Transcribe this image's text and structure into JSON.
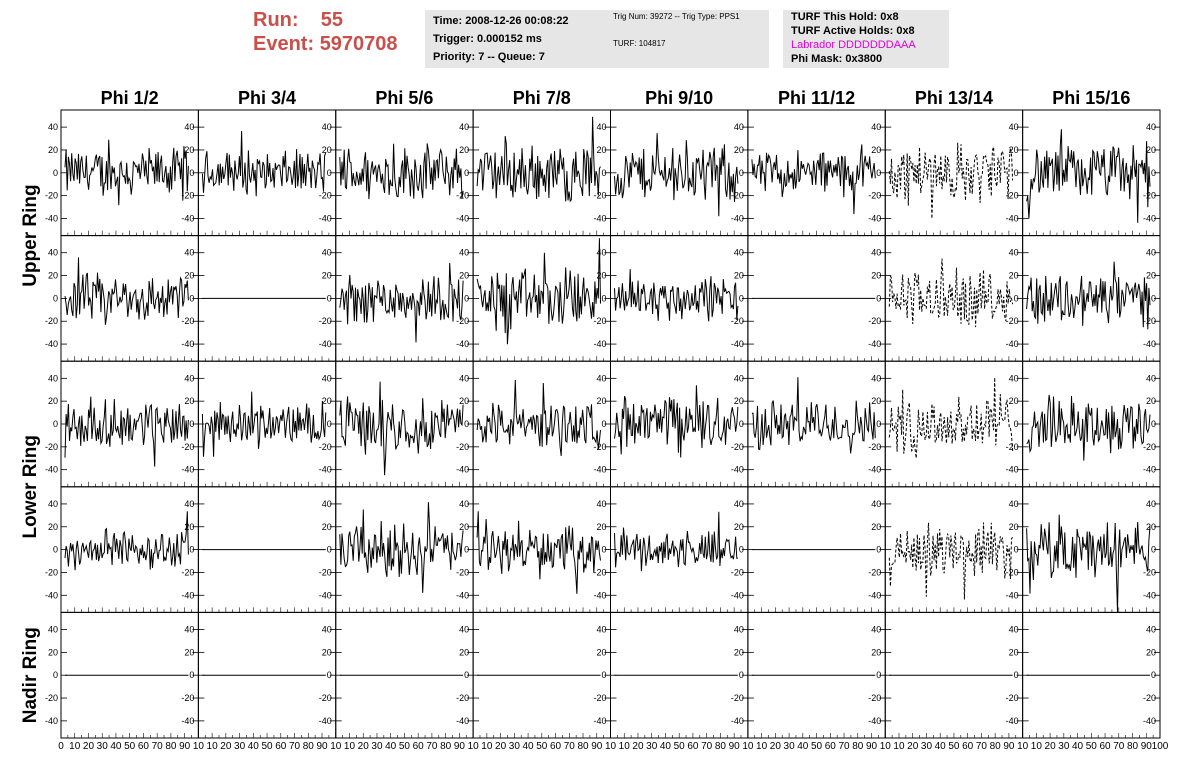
{
  "header": {
    "run_label": "Run:",
    "run_value": "55",
    "event_label": "Event:",
    "event_value": "5970708"
  },
  "info_box_1": {
    "time": "Time: 2008-12-26 00:08:22",
    "trigger": "Trigger: 0.000152 ms",
    "priority": "Priority: 7 -- Queue: 7"
  },
  "info_box_2": {
    "trig": "Trig Num: 39272 -- Trig Type: PPS1",
    "turf": "TURF: 104817"
  },
  "info_box_3": {
    "hold": "TURF This Hold: 0x8",
    "active": "TURF Active Holds: 0x8",
    "labrador": "Labrador DDDDDDDAAA",
    "mask": "Phi Mask: 0x3800"
  },
  "chart_data": {
    "type": "line",
    "columns": [
      "Phi 1/2",
      "Phi 3/4",
      "Phi 5/6",
      "Phi 7/8",
      "Phi 9/10",
      "Phi 11/12",
      "Phi 13/14",
      "Phi 15/16"
    ],
    "rows": [
      "Upper Ring",
      "Upper Ring",
      "Lower Ring",
      "Lower Ring",
      "Nadir Ring"
    ],
    "row_titles": [
      "Upper Ring",
      "Lower Ring",
      "Nadir Ring"
    ],
    "xlim": [
      0,
      100
    ],
    "ylim": [
      -55,
      55
    ],
    "x_ticks": [
      0,
      10,
      20,
      30,
      40,
      50,
      60,
      70,
      80,
      90,
      100
    ],
    "x_tick_labels": [
      "0",
      "10",
      "20",
      "30",
      "40",
      "50",
      "60",
      "70",
      "80",
      "90",
      "10",
      "10",
      "20",
      "30",
      "40",
      "50",
      "60",
      "70",
      "80",
      "90",
      "10",
      "10",
      "20",
      "30",
      "40",
      "50",
      "60",
      "70",
      "80",
      "90",
      "10",
      "10",
      "20",
      "30",
      "40",
      "50",
      "60",
      "70",
      "80",
      "90",
      "10",
      "10",
      "20",
      "30",
      "40",
      "50",
      "60",
      "70",
      "80",
      "90",
      "10",
      "10",
      "20",
      "30",
      "40",
      "50",
      "60",
      "70",
      "80",
      "90",
      "10",
      "10",
      "20",
      "30",
      "40",
      "50",
      "60",
      "70",
      "80",
      "90",
      "10",
      "10",
      "20",
      "30",
      "40",
      "50",
      "60",
      "70",
      "80",
      "90",
      "100"
    ],
    "y_ticks": [
      40,
      20,
      0,
      -20,
      -40
    ],
    "y_tick_labels": [
      "40",
      "20",
      "0",
      "-20",
      "-40"
    ],
    "panels": [
      [
        {
          "amp": 18,
          "style": "solid"
        },
        {
          "amp": 16,
          "style": "solid"
        },
        {
          "amp": 20,
          "style": "solid"
        },
        {
          "amp": 22,
          "style": "solid"
        },
        {
          "amp": 20,
          "style": "solid"
        },
        {
          "amp": 17,
          "style": "solid"
        },
        {
          "amp": 22,
          "style": "dashed"
        },
        {
          "amp": 20,
          "style": "solid"
        }
      ],
      [
        {
          "amp": 18,
          "style": "solid"
        },
        {
          "amp": 0,
          "style": "flat"
        },
        {
          "amp": 18,
          "style": "solid"
        },
        {
          "amp": 22,
          "style": "solid"
        },
        {
          "amp": 17,
          "style": "solid"
        },
        {
          "amp": 0,
          "style": "flat"
        },
        {
          "amp": 20,
          "style": "dashed"
        },
        {
          "amp": 20,
          "style": "solid"
        }
      ],
      [
        {
          "amp": 17,
          "style": "solid"
        },
        {
          "amp": 15,
          "style": "solid"
        },
        {
          "amp": 20,
          "style": "solid"
        },
        {
          "amp": 17,
          "style": "solid"
        },
        {
          "amp": 20,
          "style": "solid"
        },
        {
          "amp": 18,
          "style": "solid"
        },
        {
          "amp": 24,
          "style": "dashed"
        },
        {
          "amp": 20,
          "style": "solid"
        }
      ],
      [
        {
          "amp": 14,
          "style": "solid"
        },
        {
          "amp": 0,
          "style": "flat"
        },
        {
          "amp": 20,
          "style": "solid"
        },
        {
          "amp": 16,
          "style": "solid"
        },
        {
          "amp": 14,
          "style": "solid"
        },
        {
          "amp": 0,
          "style": "flat"
        },
        {
          "amp": 18,
          "style": "dashed"
        },
        {
          "amp": 22,
          "style": "solid"
        }
      ],
      [
        {
          "amp": 0,
          "style": "flat"
        },
        {
          "amp": 0,
          "style": "flat"
        },
        {
          "amp": 0,
          "style": "flat"
        },
        {
          "amp": 0,
          "style": "flat"
        },
        {
          "amp": 0,
          "style": "flat"
        },
        {
          "amp": 0,
          "style": "flat"
        },
        {
          "amp": 0,
          "style": "flat"
        },
        {
          "amp": 0,
          "style": "flat"
        }
      ]
    ],
    "colors": {
      "header_text": "#c9504a",
      "labrador": "#e000e0",
      "info_bg": "#e6e6e6",
      "trace": "#000000"
    },
    "grid": false
  }
}
